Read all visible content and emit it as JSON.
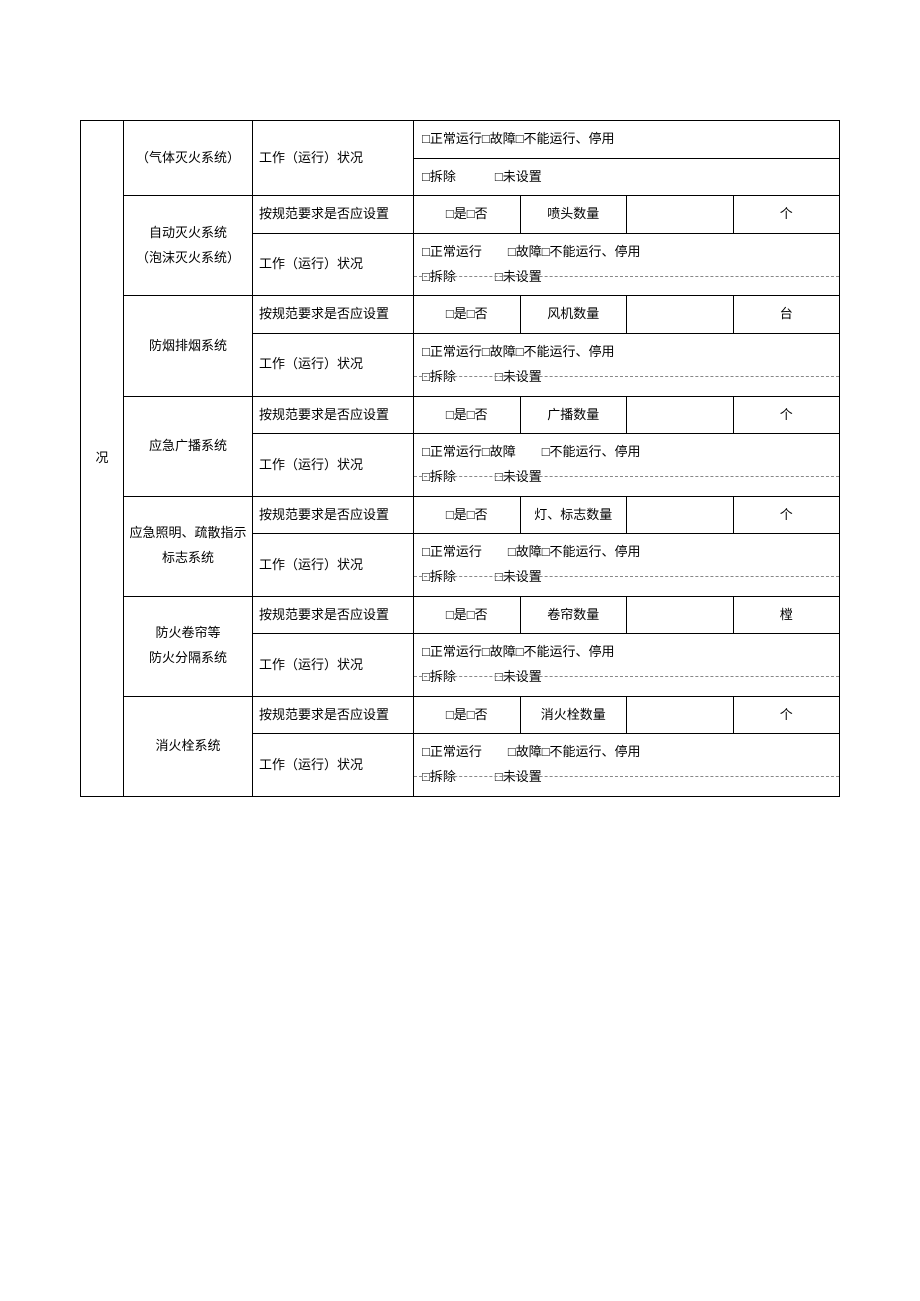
{
  "leftHeader": "况",
  "labels": {
    "standardQuestion": "按规范要求是否应设置",
    "workStatus": "工作（运行）状况",
    "yesNo": "□是□否"
  },
  "systems": [
    {
      "name_html": "（气体灭火系统）",
      "qtyLabel": null,
      "unit": null,
      "hasStdRow": false,
      "status1": "□正常运行□故障□不能运行、停用",
      "status2_a": "□拆除",
      "status2_b": "□未设置"
    },
    {
      "name_l1": "自动灭火系统",
      "name_l2": "（泡沫灭火系统）",
      "qtyLabel": "喷头数量",
      "unit": "个",
      "status1": "□正常运行  □故障□不能运行、停用",
      "status2_a": "□拆除",
      "status2_b": "□未设置"
    },
    {
      "name": "防烟排烟系统",
      "qtyLabel": "风机数量",
      "unit": "台",
      "status1": "□正常运行□故障□不能运行、停用",
      "status2_a": "□拆除",
      "status2_b": "□未设置"
    },
    {
      "name": "应急广播系统",
      "qtyLabel": "广播数量",
      "unit": "个",
      "status1": "□正常运行□故障  □不能运行、停用",
      "status2_a": "□拆除",
      "status2_b": "□未设置"
    },
    {
      "name_l1": "应急照明、疏散指示",
      "name_l2": "标志系统",
      "qtyLabel": "灯、标志数量",
      "unit": "个",
      "status1": "□正常运行  □故障□不能运行、停用",
      "status2_a": "□拆除",
      "status2_b": "□未设置"
    },
    {
      "name_l1": "防火卷帘等",
      "name_l2": "防火分隔系统",
      "qtyLabel": "卷帘数量",
      "unit": "樘",
      "status1": "□正常运行□故障□不能运行、停用",
      "status2_a": "□拆除",
      "status2_b": "□未设置"
    },
    {
      "name": "消火栓系统",
      "qtyLabel": "消火栓数量",
      "unit": "个",
      "status1": "□正常运行  □故障□不能运行、停用",
      "status2_a": "□拆除",
      "status2_b": "□未设置"
    }
  ]
}
